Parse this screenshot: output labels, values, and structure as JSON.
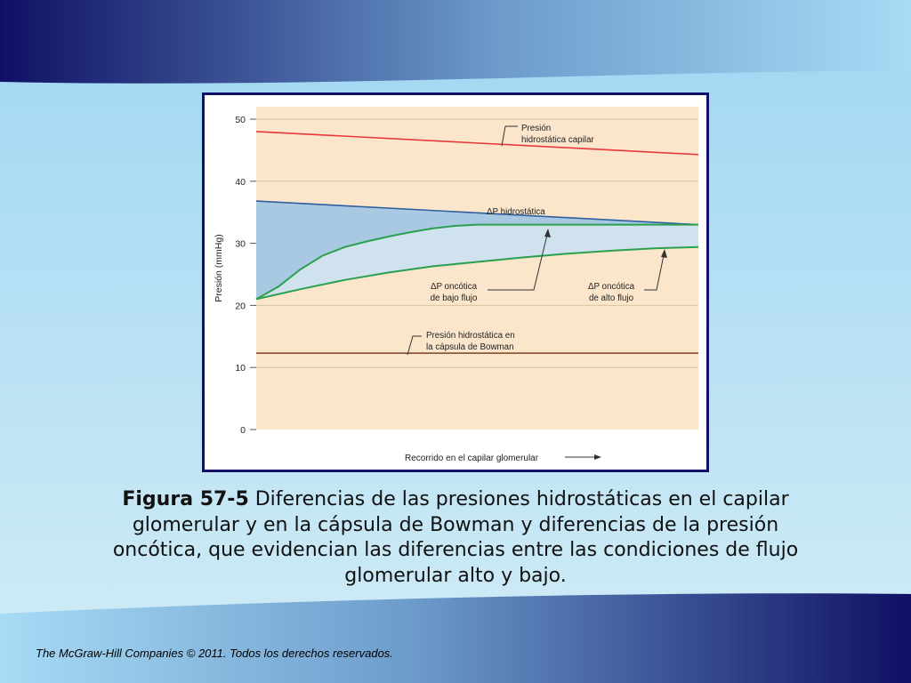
{
  "slide": {
    "colors": {
      "dark_blue": "#13106a",
      "light_blue": "#9fd6f2",
      "pale_blue": "#c9e9f5"
    }
  },
  "caption": {
    "figure_label": "Figura 57-5",
    "text": " Diferencias de las presiones hidrostáticas en el capilar glomerular y en la cápsula de Bowman y diferencias de la presión oncótica, que evidencian las diferencias entre las condiciones de flujo glomerular alto y bajo."
  },
  "footer": {
    "text": "The McGraw-Hill Companies © 2011. Todos los derechos reservados."
  },
  "chart_data": {
    "type": "line",
    "ylabel": "Presión (mmHg)",
    "xlabel": "Recorrido en el capilar glomerular",
    "ylim": [
      0,
      52
    ],
    "yticks": [
      0,
      10,
      20,
      30,
      40,
      50
    ],
    "colors": {
      "plot_bg": "#fbe6cc",
      "grid": "#d7c39c",
      "red": "#e8383a",
      "blue": "#2f5f9f",
      "green": "#2aa050",
      "brown": "#8a5a3a",
      "fill_dark": "#a9c8e2",
      "fill_light": "#cfe2ee"
    },
    "series": [
      {
        "name": "Presión hidrostática capilar",
        "x": [
          0,
          1
        ],
        "y": [
          48,
          44.3
        ]
      },
      {
        "name": "ΔP hidrostática",
        "x": [
          0,
          1
        ],
        "y": [
          36.8,
          33
        ]
      },
      {
        "name": "ΔP oncótica de bajo flujo",
        "x": [
          0,
          0.05,
          0.1,
          0.15,
          0.2,
          0.25,
          0.3,
          0.35,
          0.4,
          0.45,
          0.5,
          1
        ],
        "y": [
          21,
          23,
          25.8,
          28,
          29.4,
          30.3,
          31.1,
          31.8,
          32.4,
          32.8,
          33,
          33
        ]
      },
      {
        "name": "ΔP oncótica de alto flujo",
        "x": [
          0,
          0.1,
          0.2,
          0.3,
          0.4,
          0.5,
          0.6,
          0.7,
          0.8,
          0.9,
          1
        ],
        "y": [
          21,
          22.6,
          24.1,
          25.3,
          26.3,
          27,
          27.7,
          28.3,
          28.8,
          29.2,
          29.4
        ]
      },
      {
        "name": "Presión hidrostática en la cápsula de Bowman",
        "x": [
          0,
          1
        ],
        "y": [
          12.3,
          12.3
        ]
      }
    ],
    "annotations": [
      {
        "id": "capilar",
        "lines": [
          "Presión",
          "hidrostática capilar"
        ]
      },
      {
        "id": "dp_hidro",
        "lines": [
          "ΔP hidrostática"
        ]
      },
      {
        "id": "bajo",
        "lines": [
          "ΔP oncótica",
          "de bajo flujo"
        ]
      },
      {
        "id": "alto",
        "lines": [
          "ΔP oncótica",
          "de alto flujo"
        ]
      },
      {
        "id": "bowman",
        "lines": [
          "Presión hidrostática en",
          "la cápsula de Bowman"
        ]
      }
    ]
  }
}
